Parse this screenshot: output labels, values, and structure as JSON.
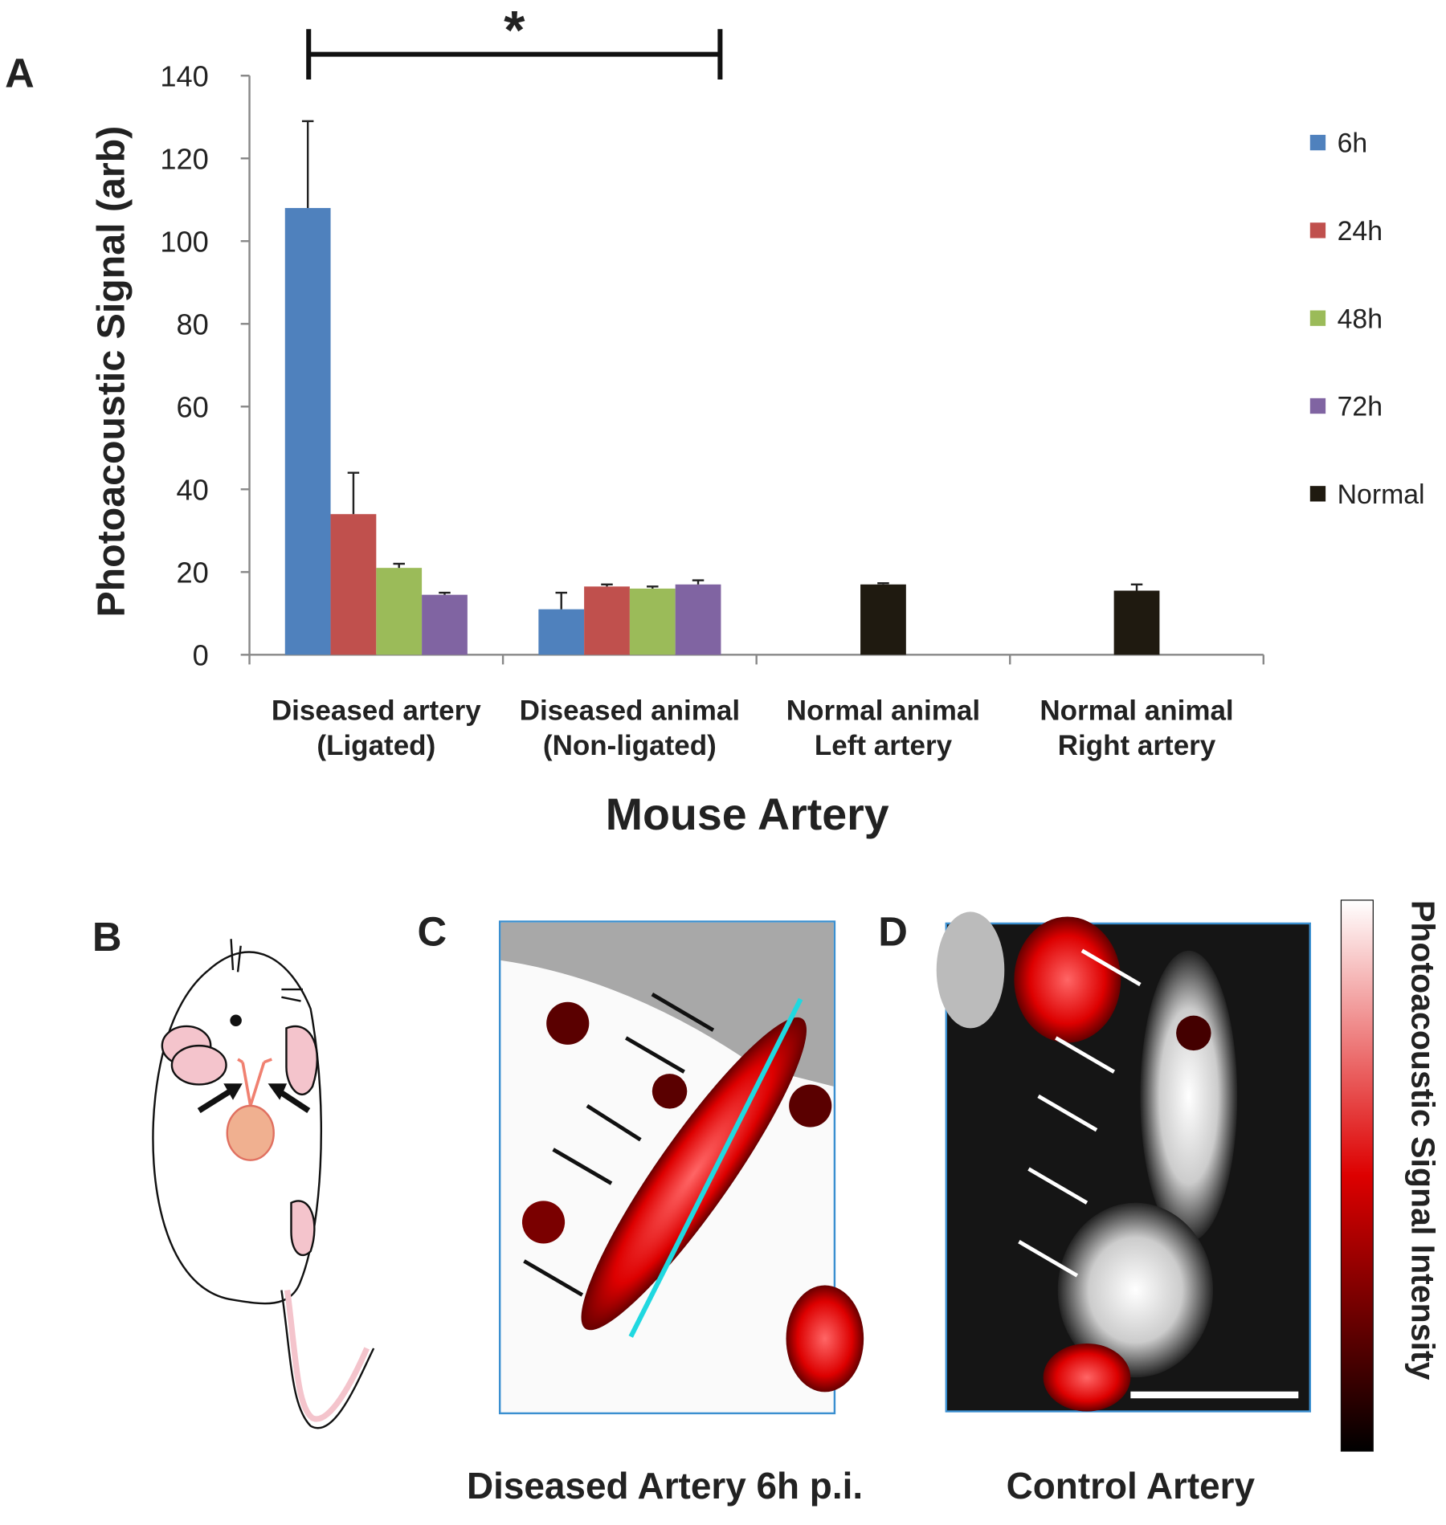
{
  "chart_data": {
    "type": "bar",
    "ylabel": "Photoacoustic Signal (arb)",
    "xlabel": "Mouse Artery",
    "categories": [
      [
        "Diseased artery",
        "(Ligated)"
      ],
      [
        "Diseased animal",
        "(Non-ligated)"
      ],
      [
        "Normal animal",
        "Left artery"
      ],
      [
        "Normal animal",
        "Right artery"
      ]
    ],
    "series": [
      {
        "name": "6h",
        "color": "#4f81bd",
        "values": [
          108,
          11,
          null,
          null
        ],
        "errors": [
          21,
          4,
          null,
          null
        ]
      },
      {
        "name": "24h",
        "color": "#c0504d",
        "values": [
          34,
          16.5,
          null,
          null
        ],
        "errors": [
          10,
          0.5,
          null,
          null
        ]
      },
      {
        "name": "48h",
        "color": "#9bbb59",
        "values": [
          21,
          16,
          null,
          null
        ],
        "errors": [
          1,
          0.5,
          null,
          null
        ]
      },
      {
        "name": "72h",
        "color": "#8064a2",
        "values": [
          14.5,
          17,
          null,
          null
        ],
        "errors": [
          0.5,
          1,
          null,
          null
        ]
      },
      {
        "name": "Normal",
        "color": "#1f1a10",
        "values": [
          null,
          null,
          17,
          15.5
        ],
        "errors": [
          null,
          null,
          0.3,
          1.5
        ]
      }
    ],
    "ylim": [
      0,
      140
    ],
    "yticks": [
      0,
      20,
      40,
      60,
      80,
      100,
      120,
      140
    ],
    "significance": "*"
  },
  "panel_labels": [
    "A",
    "B",
    "C",
    "D"
  ],
  "captions": {
    "c": "Diseased Artery 6h p.i.",
    "d": "Control Artery",
    "colorbar": "Photoacoustic Signal Intensity"
  }
}
